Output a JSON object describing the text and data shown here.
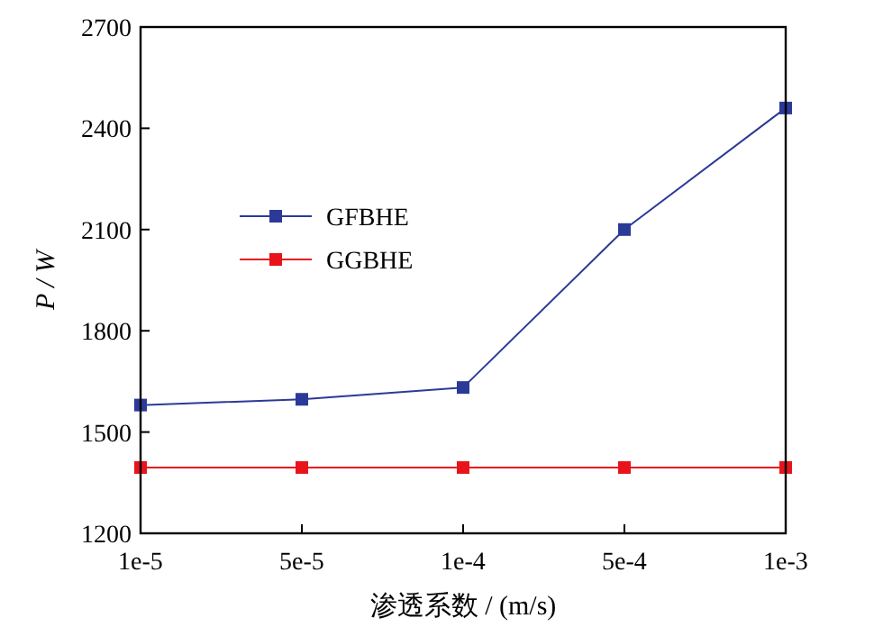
{
  "chart_data": {
    "type": "line",
    "xlabel": "渗透系数 / (m/s)",
    "ylabel": "P / W",
    "categories": [
      "1e-5",
      "5e-5",
      "1e-4",
      "5e-4",
      "1e-3"
    ],
    "series": [
      {
        "name": "GFBHE",
        "color": "#2b3a98",
        "values": [
          1580,
          1597,
          1632,
          2100,
          2460
        ]
      },
      {
        "name": "GGBHE",
        "color": "#e8141c",
        "values": [
          1395,
          1395,
          1395,
          1395,
          1395
        ]
      }
    ],
    "ylim": [
      1200,
      2700
    ],
    "yticks": [
      1200,
      1500,
      1800,
      2100,
      2400,
      2700
    ],
    "marker": "square",
    "line_style": "solid",
    "legend": "center",
    "grid": false
  }
}
